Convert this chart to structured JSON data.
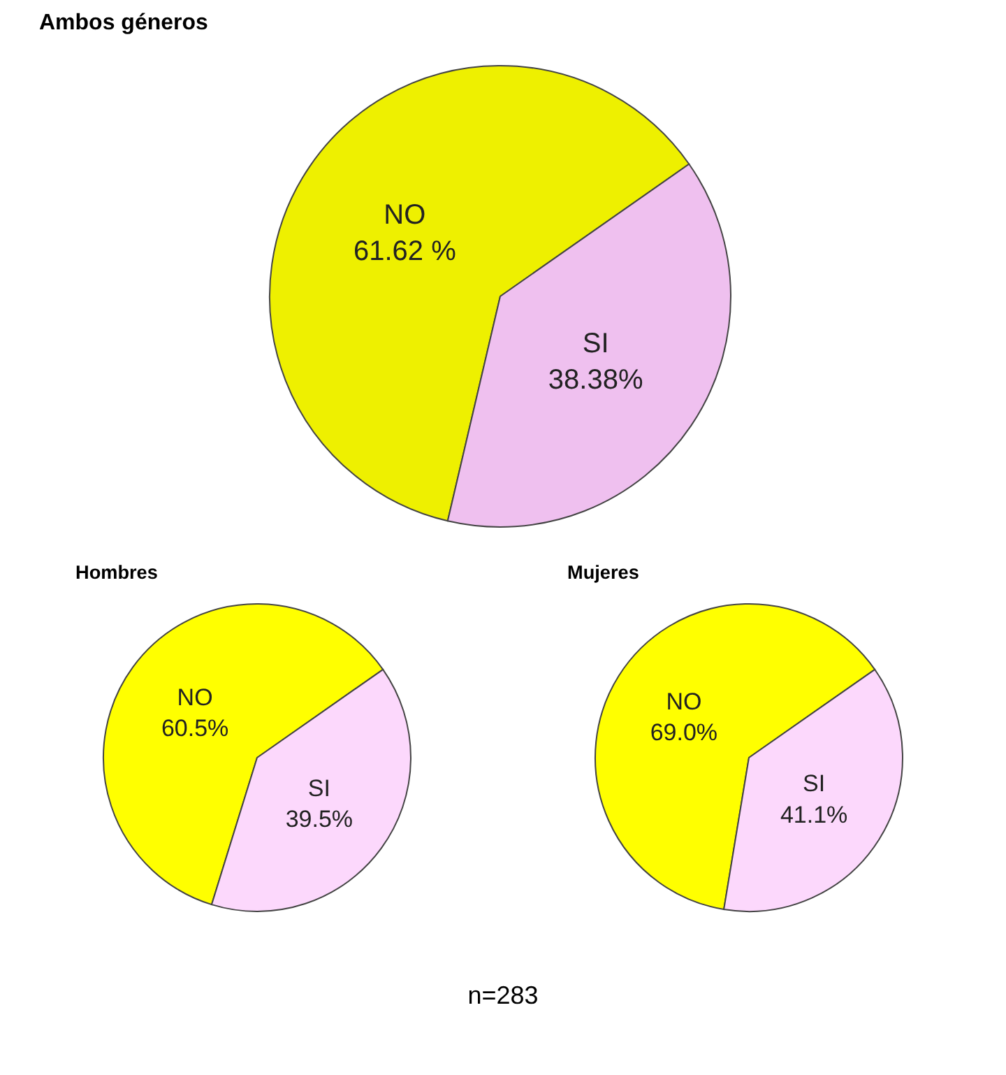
{
  "chart_data": [
    {
      "type": "pie",
      "title": "Ambos géneros",
      "categories": [
        "NO",
        "SI"
      ],
      "values": [
        61.62,
        38.38
      ],
      "value_labels": [
        "61.62 %",
        "38.38%"
      ],
      "colors": [
        "#eef000",
        "#efc0ef"
      ],
      "legend": false
    },
    {
      "type": "pie",
      "title": "Hombres",
      "categories": [
        "NO",
        "SI"
      ],
      "values": [
        60.5,
        39.5
      ],
      "value_labels": [
        "60.5%",
        "39.5%"
      ],
      "colors": [
        "#ffff00",
        "#fcd8fc"
      ],
      "legend": false
    },
    {
      "type": "pie",
      "title": "Mujeres",
      "categories": [
        "NO",
        "SI"
      ],
      "values": [
        69.0,
        41.1
      ],
      "value_labels": [
        "69.0%",
        "41.1%"
      ],
      "colors": [
        "#ffff00",
        "#fcd8fc"
      ],
      "legend": false,
      "annotations": [
        "n=283"
      ]
    }
  ]
}
